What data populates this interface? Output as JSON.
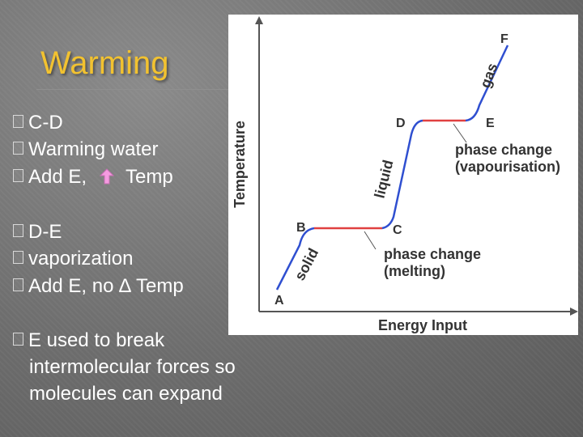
{
  "slide": {
    "title": "Warming",
    "bullets": {
      "cd_heading": "C-D",
      "cd_line1": "Warming water",
      "cd_line2_a": "Add E,",
      "cd_line2_b": "Temp",
      "de_heading": "D-E",
      "de_line1": "vaporization",
      "de_line2": "Add E,  no ∆ Temp",
      "e_line1": "E  used to break",
      "e_line2": "intermolecular  forces so",
      "e_line3": "molecules can expand"
    },
    "icons": {
      "increase_arrow": "up-arrow-icon"
    },
    "colors": {
      "title": "#f2c230",
      "arrow": "#f59be0",
      "curve": "#2f4fd0",
      "plateau": "#e04040"
    }
  },
  "diagram": {
    "ylabel": "Temperature",
    "xlabel": "Energy Input",
    "points": {
      "a": "A",
      "b": "B",
      "c": "C",
      "d": "D",
      "e": "E",
      "f": "F"
    },
    "segment_labels": {
      "solid": "solid",
      "liquid": "liquid",
      "gas": "gas"
    },
    "annotation_melt_1": "phase change",
    "annotation_melt_2": "(melting)",
    "annotation_vap_1": "phase change",
    "annotation_vap_2": "(vapourisation)"
  }
}
